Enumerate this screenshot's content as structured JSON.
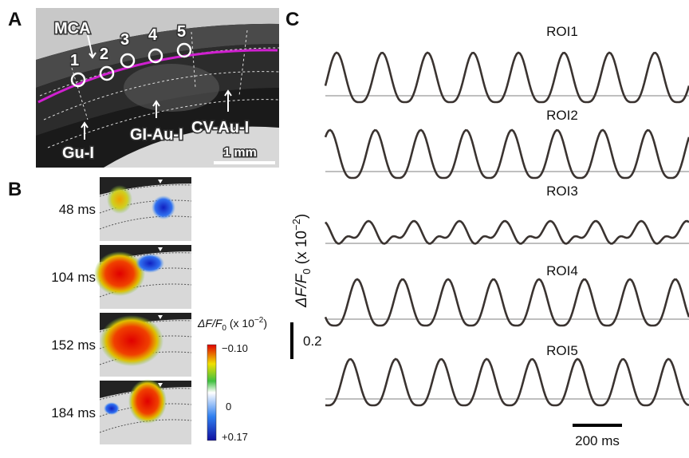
{
  "panels": {
    "a": {
      "label": "A",
      "mca": "MCA",
      "rois": [
        "1",
        "2",
        "3",
        "4",
        "5"
      ],
      "regions": [
        "Gu-I",
        "GI-Au-I",
        "CV-Au-I"
      ],
      "scale_bar": "1 mm"
    },
    "b": {
      "label": "B",
      "times": [
        "48 ms",
        "104 ms",
        "152 ms",
        "184 ms"
      ],
      "colorbar": {
        "title": [
          "ΔF/F",
          "0",
          " (x 10",
          "−2",
          ")"
        ],
        "ticks": [
          "−0.10",
          "0",
          "+0.17"
        ]
      }
    },
    "c": {
      "label": "C",
      "traces": [
        "ROI1",
        "ROI2",
        "ROI3",
        "ROI4",
        "ROI5"
      ],
      "y_label": [
        "ΔF/F",
        "0",
        " (x 10",
        "−2",
        ")"
      ],
      "amplitude_bar": "0.2",
      "time_bar": "200 ms"
    }
  }
}
